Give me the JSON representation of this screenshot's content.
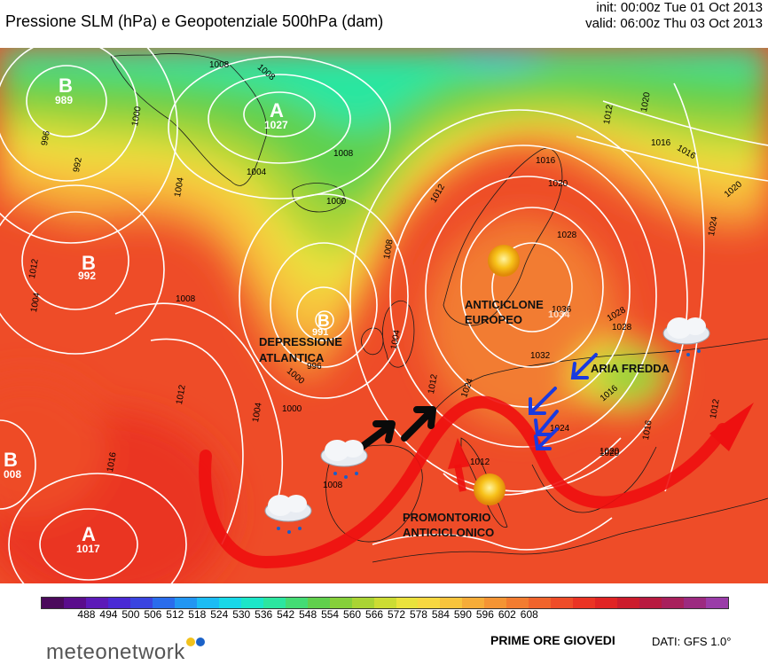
{
  "header": {
    "title": "Pressione SLM (hPa) e Geopotenziale 500hPa (dam)",
    "init": "init: 00:00z Tue 01 Oct 2013",
    "valid": "valid: 06:00z Thu 03 Oct 2013"
  },
  "pressure_centers": [
    {
      "letter": "B",
      "value": "989"
    },
    {
      "letter": "A",
      "value": "1027"
    },
    {
      "letter": "B",
      "value": "992"
    },
    {
      "letter": "B",
      "value": "991"
    },
    {
      "letter": "B",
      "value": "008"
    },
    {
      "letter": "A",
      "value": "1017"
    },
    {
      "letter": "A",
      "value": "1034"
    }
  ],
  "isobar_labels": [
    "996",
    "992",
    "1000",
    "1004",
    "1008",
    "1012",
    "1008",
    "1004",
    "1000",
    "1008",
    "1004",
    "1000",
    "1004",
    "1008",
    "1008",
    "1012",
    "1016",
    "1020",
    "1024",
    "1028",
    "1032",
    "1036",
    "1028",
    "1024",
    "1020",
    "1016",
    "1012",
    "1024",
    "1012",
    "1020",
    "1016",
    "1016",
    "1004",
    "1000",
    "996",
    "1008",
    "1012",
    "1016",
    "1012",
    "1016",
    "1020",
    "1012",
    "1020",
    "1028"
  ],
  "annotations": {
    "depressione": [
      "DEPRESSIONE",
      "ATLANTICA"
    ],
    "anticiclone": [
      "ANTICICLONE",
      "EUROPEO"
    ],
    "aria_fredda": "ARIA FREDDA",
    "promontorio": [
      "PROMONTORIO",
      "ANTICICLONICO"
    ]
  },
  "scale": {
    "colors": [
      "#4b0a5c",
      "#5a0d8c",
      "#5c1ab8",
      "#4a2ad4",
      "#3a44e0",
      "#2a6cec",
      "#2296f2",
      "#1cbcf4",
      "#18d8e8",
      "#1ce6c8",
      "#2ce6a0",
      "#44dc74",
      "#60d04c",
      "#86d03a",
      "#aad434",
      "#ccdc34",
      "#eae23c",
      "#f8d840",
      "#f8c43c",
      "#f6ac38",
      "#f49434",
      "#f27c30",
      "#f0642c",
      "#ee4c28",
      "#ea3424",
      "#e02424",
      "#cc1c2c",
      "#b81a40",
      "#a8205c",
      "#9c2a80",
      "#9a3ca8"
    ],
    "labels": [
      "488",
      "494",
      "500",
      "506",
      "512",
      "518",
      "524",
      "530",
      "536",
      "542",
      "548",
      "554",
      "560",
      "566",
      "572",
      "578",
      "584",
      "590",
      "596",
      "602",
      "608"
    ]
  },
  "footer": {
    "logo": "meteonetwork",
    "logo_dot_colors": [
      "#f2c21c",
      "#1b62c8"
    ],
    "caption": "PRIME ORE GIOVEDI",
    "source": "DATI:  GFS  1.0°"
  }
}
